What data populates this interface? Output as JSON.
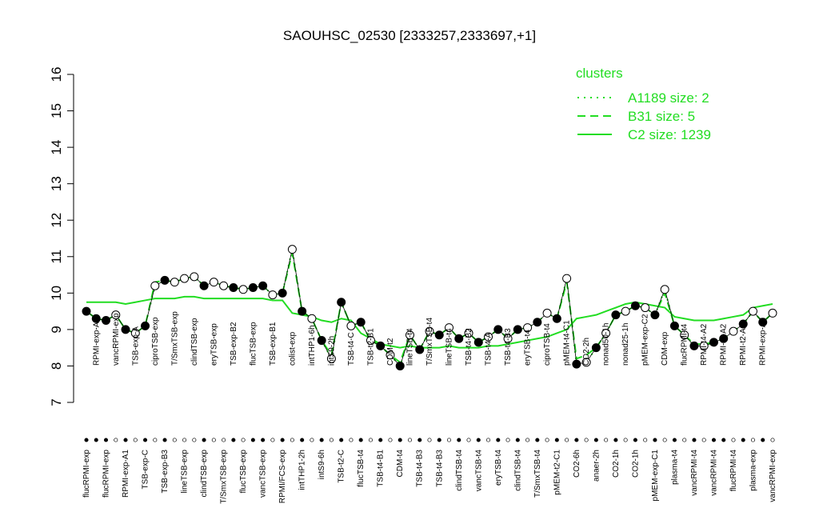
{
  "chart_data": {
    "type": "line",
    "title": "SAOUHSC_02530 [2333257,2333697,+1]",
    "ylim": [
      7,
      16
    ],
    "yticks": [
      7,
      8,
      9,
      10,
      11,
      12,
      13,
      14,
      15,
      16
    ],
    "legend_title": "clusters",
    "legend": "top-right",
    "categories": [
      "flucRPMI-exp",
      "RPMI-exp-A2",
      "flucRPMI-exp",
      "vancRPMI-exp",
      "RPMI-exp-A1",
      "TSB-exp-A",
      "TSB-exp-C",
      "ciproTSB-exp",
      "TSB-exp-B3",
      "T/SmxTSB-exp",
      "lineTSB-exp",
      "clindTSB-exp",
      "clindTSB-exp",
      "eryTSB-exp",
      "T/SmxTSB-exp",
      "TSB-exp-B2",
      "flucTSB-exp",
      "flucTSB-exp",
      "vancTSB-exp",
      "TSB-exp-B1",
      "RPMI/FCS-exp",
      "colist-exp",
      "intTHP1-2h",
      "intTHP1-6h",
      "intS9-6h",
      "intS9-2h",
      "TSB-t2-C",
      "TSB-t4-C",
      "flucTSB-t4",
      "TSB-t2-B1",
      "TSB-t4-B1",
      "CDM-t2",
      "CDM-t4",
      "lineTSB-t4",
      "TSB-t4-B3",
      "T/SmxTSB-t4",
      "TSB-t4-B3",
      "lineTSB-t4",
      "clindTSB-t4",
      "TSB-t4-B2",
      "vancTSB-t4",
      "TSB-t4-A",
      "eryTSB-t4",
      "TSB-t4-B3",
      "clindTSB-t4",
      "eryTSB-t4",
      "T/SmxTSB-t4",
      "ciproTSB-t4",
      "pMEM-t2-C1",
      "pMEM-t4-C1",
      "CO2-6h",
      "CO2-2h",
      "anaer-2h",
      "nonad50-1h",
      "CO2-1h",
      "nonad25-1h",
      "CO2-1h",
      "pMEM-exp-C2",
      "pMEM-exp-C1",
      "CDM-exp",
      "plasma-t4",
      "flucRPMI-t4",
      "vancRPMI-t4",
      "RPMI-t4-A2",
      "vancRPMI-t4",
      "RPMI-t4-A2",
      "flucRPMI-t4",
      "RPMI-t2-A1",
      "plasma-exp",
      "RPMI-exp-A2",
      "vancRPMI-exp"
    ],
    "points": {
      "color": "#000000",
      "values": [
        9.5,
        9.3,
        9.25,
        9.4,
        9.0,
        8.9,
        9.1,
        10.2,
        10.35,
        10.3,
        10.4,
        10.45,
        10.2,
        10.3,
        10.2,
        10.15,
        10.1,
        10.15,
        10.2,
        9.95,
        10.0,
        11.2,
        9.5,
        9.3,
        8.7,
        8.2,
        9.75,
        9.1,
        9.2,
        8.7,
        8.55,
        8.3,
        8.0,
        8.85,
        8.45,
        8.95,
        8.85,
        9.05,
        8.75,
        8.9,
        8.65,
        8.8,
        9.0,
        8.75,
        9.0,
        9.05,
        9.2,
        9.45,
        9.3,
        10.4,
        8.05,
        8.1,
        8.5,
        8.9,
        9.4,
        9.5,
        9.65,
        9.6,
        9.4,
        10.1,
        9.1,
        8.85,
        8.55,
        8.55,
        8.65,
        8.75,
        8.95,
        9.15,
        9.5,
        9.2,
        9.45
      ],
      "filled": [
        true,
        true,
        true,
        false,
        true,
        false,
        true,
        false,
        true,
        false,
        false,
        false,
        true,
        false,
        false,
        true,
        false,
        true,
        true,
        false,
        true,
        false,
        true,
        false,
        true,
        false,
        true,
        false,
        true,
        false,
        true,
        false,
        true,
        false,
        true,
        false,
        true,
        false,
        true,
        false,
        true,
        false,
        true,
        false,
        true,
        false,
        true,
        false,
        true,
        false,
        true,
        false,
        true,
        false,
        true,
        false,
        true,
        false,
        true,
        false,
        true,
        false,
        true,
        false,
        true,
        true,
        false,
        true,
        false,
        true,
        false
      ]
    },
    "series": [
      {
        "name": "A1189 size: 2",
        "color": "#22dd22",
        "dash": "dotted",
        "values": [
          9.5,
          9.3,
          9.25,
          9.4,
          9.0,
          8.9,
          9.1,
          10.2,
          10.35,
          10.3,
          10.4,
          10.45,
          10.2,
          10.3,
          10.2,
          10.15,
          10.1,
          10.15,
          10.2,
          9.95,
          10.0,
          11.2,
          9.5,
          9.3,
          8.7,
          8.2,
          9.75,
          9.1,
          9.2,
          8.7,
          8.55,
          8.3,
          8.0,
          8.85,
          8.45,
          8.95,
          8.85,
          9.05,
          8.75,
          8.9,
          8.65,
          8.8,
          9.0,
          8.75,
          9.0,
          9.05,
          9.2,
          9.45,
          9.3,
          10.4,
          8.05,
          8.1,
          8.5,
          8.9,
          9.4,
          9.5,
          9.65,
          9.6,
          9.4,
          10.1,
          9.1,
          8.85,
          8.55,
          8.55,
          8.65,
          8.75,
          8.95,
          9.15,
          9.5,
          9.2,
          9.45
        ]
      },
      {
        "name": "B31 size: 5",
        "color": "#22dd22",
        "dash": "dashed",
        "values": [
          9.5,
          9.3,
          9.25,
          9.4,
          9.0,
          8.9,
          9.1,
          10.3,
          10.35,
          10.3,
          10.4,
          10.45,
          10.2,
          10.3,
          10.2,
          10.15,
          10.1,
          10.15,
          10.2,
          9.95,
          10.0,
          11.1,
          9.5,
          9.3,
          8.7,
          8.3,
          9.75,
          9.1,
          9.2,
          8.7,
          8.55,
          8.3,
          8.1,
          8.85,
          8.45,
          8.95,
          8.85,
          9.05,
          8.75,
          8.9,
          8.65,
          8.8,
          9.0,
          8.75,
          9.0,
          9.05,
          9.2,
          9.45,
          9.3,
          10.3,
          8.2,
          8.3,
          8.5,
          8.9,
          9.4,
          9.5,
          9.65,
          9.6,
          9.4,
          10.0,
          9.1,
          8.85,
          8.6,
          8.6,
          8.65,
          8.75,
          8.95,
          9.15,
          9.5,
          9.2,
          9.45
        ]
      },
      {
        "name": "C2 size: 1239",
        "color": "#22dd22",
        "dash": "solid",
        "values": [
          9.75,
          9.75,
          9.75,
          9.75,
          9.7,
          9.75,
          9.8,
          9.85,
          9.85,
          9.85,
          9.9,
          9.9,
          9.85,
          9.85,
          9.85,
          9.85,
          9.85,
          9.85,
          9.85,
          9.8,
          9.8,
          9.45,
          9.4,
          9.35,
          9.25,
          9.2,
          9.3,
          9.25,
          8.9,
          8.75,
          8.6,
          8.55,
          8.5,
          8.55,
          8.5,
          8.5,
          8.5,
          8.55,
          8.5,
          8.5,
          8.5,
          8.55,
          8.55,
          8.6,
          8.65,
          8.7,
          8.75,
          8.8,
          8.9,
          9.0,
          9.3,
          9.35,
          9.4,
          9.5,
          9.6,
          9.7,
          9.75,
          9.7,
          9.65,
          9.6,
          9.35,
          9.3,
          9.25,
          9.25,
          9.25,
          9.3,
          9.35,
          9.4,
          9.6,
          9.65,
          9.7
        ]
      }
    ]
  }
}
